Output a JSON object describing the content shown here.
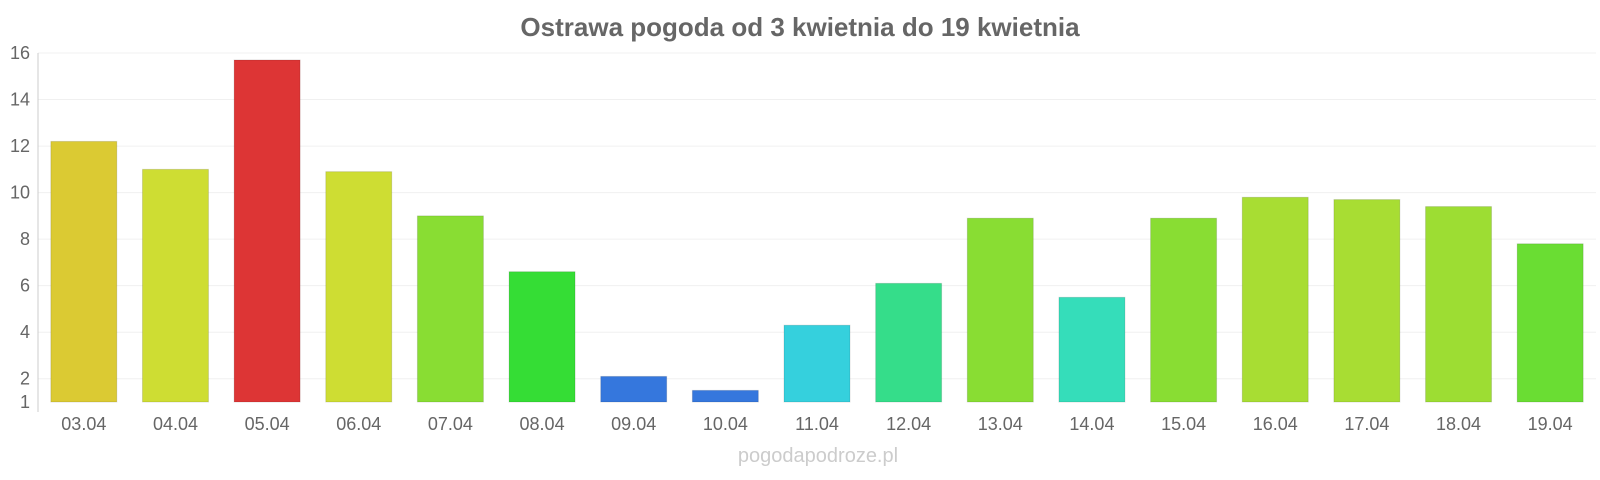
{
  "chart_data": {
    "type": "bar",
    "title": "Ostrawa pogoda od 3 kwietnia do 19 kwietnia",
    "xlabel": "",
    "ylabel": "",
    "categories": [
      "03.04",
      "04.04",
      "05.04",
      "06.04",
      "07.04",
      "08.04",
      "09.04",
      "10.04",
      "11.04",
      "12.04",
      "13.04",
      "14.04",
      "15.04",
      "16.04",
      "17.04",
      "18.04",
      "19.04"
    ],
    "values": [
      12.2,
      11.0,
      15.7,
      10.9,
      9.0,
      6.6,
      2.1,
      1.5,
      4.3,
      6.1,
      8.9,
      5.5,
      8.9,
      9.8,
      9.7,
      9.4,
      7.8
    ],
    "colors": [
      "#dbca33",
      "#cedd33",
      "#dd3535",
      "#cedd33",
      "#89dd33",
      "#35dd35",
      "#3577dd",
      "#3577dd",
      "#35d0dd",
      "#35dd8a",
      "#89dd33",
      "#35ddba",
      "#89dd33",
      "#a8dd33",
      "#a8dd33",
      "#9ddd33",
      "#6add33"
    ],
    "ylim": [
      1,
      16
    ],
    "yticks": [
      1,
      2,
      4,
      6,
      8,
      10,
      12,
      14,
      16
    ],
    "grid": true,
    "legend": "none"
  },
  "watermark": "pogodapodroze.pl"
}
